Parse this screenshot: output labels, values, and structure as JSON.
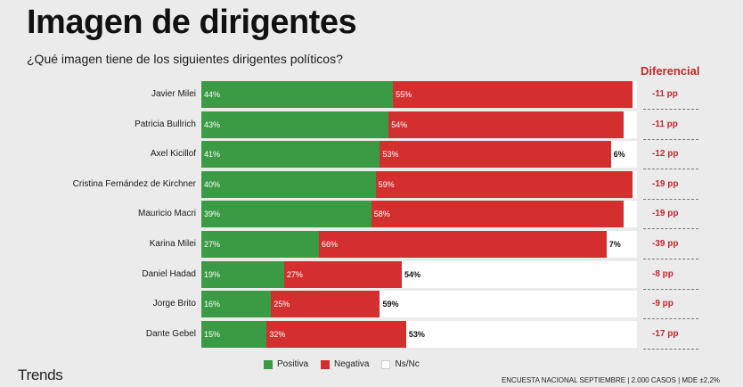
{
  "title": "Imagen de dirigentes",
  "subtitle": "¿Qué imagen tiene de los siguientes dirigentes políticos?",
  "diff_header": "Diferencial",
  "brand": "Trends",
  "source": "ENCUESTA NACIONAL SEPTIEMBRE | 2.000 CASOS | MDE ±2,2%",
  "colors": {
    "positiva": "#3b9b44",
    "negativa": "#d32f2f",
    "nsnc": "#ffffff",
    "accent": "#c0282d"
  },
  "legend": [
    {
      "label": "Positiva",
      "color": "#3b9b44"
    },
    {
      "label": "Negativa",
      "color": "#d32f2f"
    },
    {
      "label": "Ns/Nc",
      "color": "#ffffff"
    }
  ],
  "chart_data": {
    "type": "bar",
    "stacked": true,
    "orientation": "horizontal",
    "categories": [
      "Javier Milei",
      "Patricia Bullrich",
      "Axel Kicillof",
      "Cristina Fernández de Kirchner",
      "Mauricio Macri",
      "Karina Milei",
      "Daniel Hadad",
      "Jorge Brito",
      "Dante Gebel"
    ],
    "series": [
      {
        "name": "Positiva",
        "values": [
          44,
          43,
          41,
          40,
          39,
          27,
          19,
          16,
          15
        ]
      },
      {
        "name": "Negativa",
        "values": [
          55,
          54,
          53,
          59,
          58,
          66,
          27,
          25,
          32
        ]
      },
      {
        "name": "Ns/Nc",
        "values": [
          null,
          null,
          6,
          null,
          null,
          7,
          54,
          59,
          53
        ]
      }
    ],
    "diferencial": [
      "-11 pp",
      "-11 pp",
      "-12 pp",
      "-19 pp",
      "-19 pp",
      "-39 pp",
      "-8 pp",
      "-9 pp",
      "-17 pp"
    ],
    "xlim": [
      0,
      100
    ],
    "legend_position": "bottom-center"
  }
}
